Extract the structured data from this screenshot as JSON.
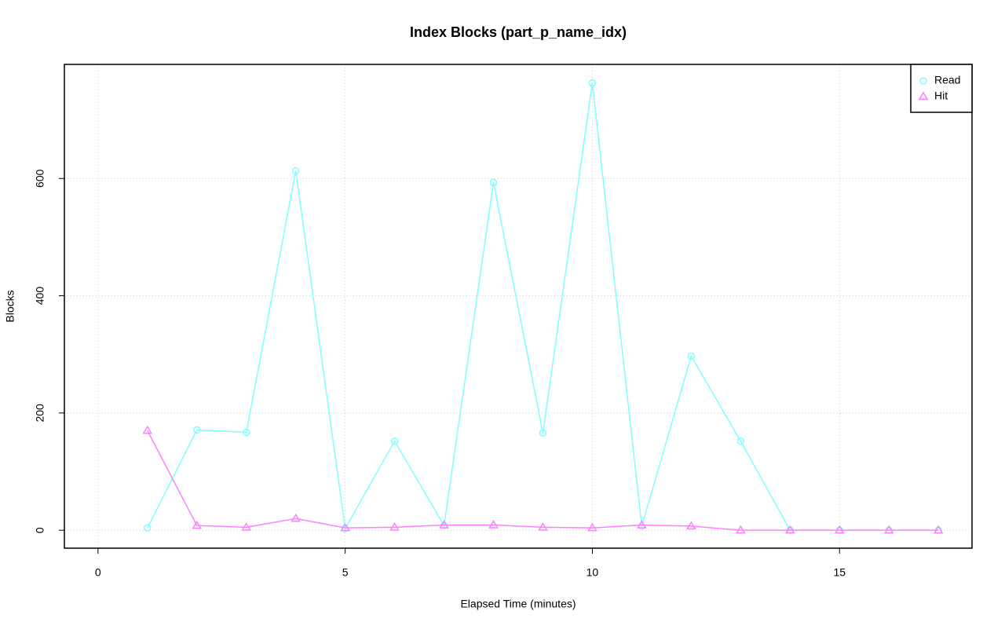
{
  "chart_data": {
    "type": "line",
    "title": "Index Blocks (part_p_name_idx)",
    "x_label": "Elapsed Time (minutes)",
    "y_label": "Blocks",
    "x": [
      1,
      2,
      3,
      4,
      5,
      6,
      7,
      8,
      9,
      10,
      11,
      12,
      13,
      14,
      15,
      16,
      17
    ],
    "series": [
      {
        "name": "Read",
        "color": "#80ffff",
        "marker": "circle",
        "values": [
          4,
          171,
          167,
          613,
          3,
          152,
          8,
          593,
          166,
          763,
          7,
          297,
          152,
          0,
          0,
          0,
          0
        ]
      },
      {
        "name": "Hit",
        "color": "#ff80ff",
        "marker": "triangle",
        "values": [
          170,
          8,
          5,
          20,
          4,
          5,
          9,
          9,
          5,
          4,
          9,
          7,
          0,
          0,
          0,
          0,
          0
        ]
      }
    ],
    "xlim": [
      -0.68,
      17.68
    ],
    "ylim": [
      -30.6,
      794.6
    ],
    "xticks": [
      0,
      5,
      10,
      15
    ],
    "yticks": [
      0,
      200,
      400,
      600
    ],
    "grid": true,
    "legend_position": "top-right"
  }
}
